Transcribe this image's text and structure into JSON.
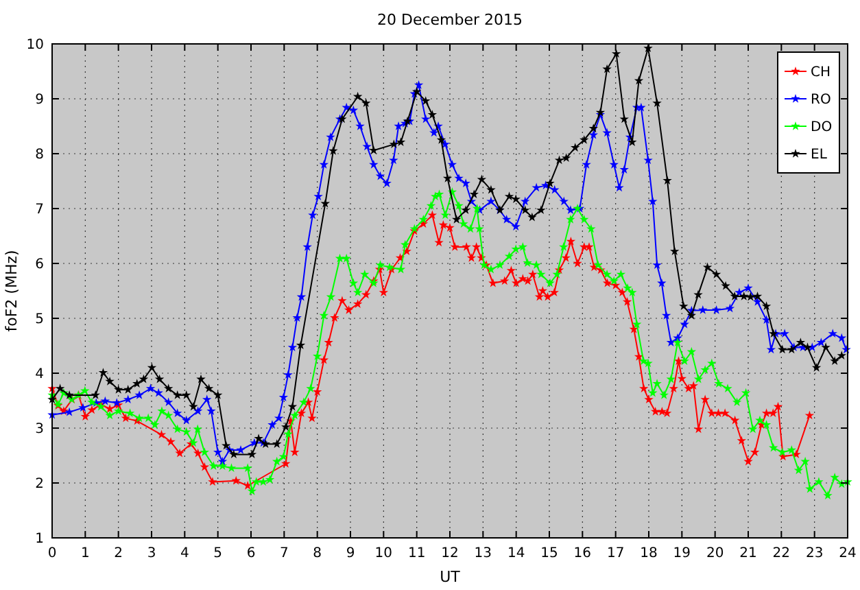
{
  "chart_data": {
    "type": "line",
    "title": "20 December 2015",
    "xlabel": "UT",
    "ylabel": "foF2 (MHz)",
    "xlim": [
      0,
      24
    ],
    "xticks": [
      0,
      1,
      2,
      3,
      4,
      5,
      6,
      7,
      8,
      9,
      10,
      11,
      12,
      13,
      14,
      15,
      16,
      17,
      18,
      19,
      20,
      21,
      22,
      23,
      24
    ],
    "ylim": [
      1,
      10
    ],
    "yticks": [
      1,
      2,
      3,
      4,
      5,
      6,
      7,
      8,
      9,
      10
    ],
    "grid": true,
    "legend": "top right",
    "marker": "star",
    "line_style": "solid",
    "series": [
      {
        "name": "CH",
        "color": "#ff0000",
        "x": [
          0,
          0.18,
          0.35,
          0.6,
          0.8,
          1.0,
          1.2,
          1.47,
          1.74,
          2.0,
          2.22,
          2.56,
          3.3,
          3.58,
          3.85,
          4.19,
          4.4,
          4.6,
          4.84,
          5.55,
          5.9,
          7.05,
          7.2,
          7.32,
          7.52,
          7.73,
          7.84,
          8.0,
          8.2,
          8.34,
          8.52,
          8.75,
          8.95,
          9.22,
          9.47,
          9.7,
          9.88,
          10.0,
          10.24,
          10.5,
          10.7,
          10.93,
          11.2,
          11.47,
          11.67,
          11.8,
          12.0,
          12.15,
          12.5,
          12.65,
          12.8,
          12.95,
          13.1,
          13.3,
          13.65,
          13.85,
          14.0,
          14.2,
          14.35,
          14.5,
          14.7,
          14.8,
          14.95,
          15.15,
          15.3,
          15.5,
          15.65,
          15.85,
          16.05,
          16.2,
          16.35,
          16.55,
          16.75,
          17.0,
          17.2,
          17.35,
          17.55,
          17.7,
          17.85,
          18.0,
          18.2,
          18.4,
          18.55,
          18.75,
          18.9,
          19.0,
          19.2,
          19.35,
          19.5,
          19.7,
          19.9,
          20.1,
          20.3,
          20.6,
          20.8,
          21.0,
          21.2,
          21.4,
          21.55,
          21.75,
          21.9,
          22.05,
          22.45,
          22.85
        ],
        "values": [
          3.72,
          3.41,
          3.31,
          3.52,
          3.6,
          3.21,
          3.33,
          3.43,
          3.35,
          3.42,
          3.18,
          3.13,
          2.88,
          2.75,
          2.54,
          2.71,
          2.54,
          2.29,
          2.02,
          2.04,
          1.95,
          2.35,
          3.13,
          2.56,
          3.27,
          3.47,
          3.18,
          3.66,
          4.24,
          4.56,
          5.01,
          5.32,
          5.15,
          5.26,
          5.43,
          5.68,
          5.89,
          5.47,
          5.89,
          6.1,
          6.22,
          6.59,
          6.72,
          6.88,
          6.38,
          6.7,
          6.65,
          6.3,
          6.3,
          6.1,
          6.3,
          6.1,
          5.97,
          5.64,
          5.68,
          5.87,
          5.64,
          5.72,
          5.68,
          5.8,
          5.39,
          5.5,
          5.39,
          5.47,
          5.88,
          6.1,
          6.4,
          6.0,
          6.3,
          6.3,
          5.93,
          5.88,
          5.64,
          5.6,
          5.47,
          5.3,
          4.8,
          4.3,
          3.72,
          3.52,
          3.3,
          3.3,
          3.27,
          3.72,
          4.22,
          3.9,
          3.72,
          3.77,
          2.98,
          3.52,
          3.27,
          3.27,
          3.27,
          3.14,
          2.77,
          2.39,
          2.56,
          3.06,
          3.27,
          3.27,
          3.39,
          2.48,
          2.52,
          3.23
        ]
      },
      {
        "name": "RO",
        "color": "#0000ff",
        "x": [
          0,
          0.52,
          0.93,
          1.33,
          1.6,
          1.95,
          2.29,
          2.63,
          2.97,
          3.21,
          3.51,
          3.78,
          4.05,
          4.4,
          4.67,
          4.8,
          5.0,
          5.14,
          5.35,
          5.69,
          6.1,
          6.37,
          6.64,
          6.84,
          6.98,
          7.12,
          7.25,
          7.39,
          7.52,
          7.7,
          7.86,
          8.03,
          8.2,
          8.4,
          8.68,
          8.88,
          9.09,
          9.29,
          9.5,
          9.7,
          9.9,
          10.1,
          10.3,
          10.45,
          10.65,
          10.79,
          10.93,
          11.06,
          11.27,
          11.52,
          11.65,
          11.86,
          12.07,
          12.27,
          12.48,
          12.65,
          12.9,
          13.24,
          13.5,
          13.71,
          13.99,
          14.27,
          14.61,
          14.89,
          15.16,
          15.44,
          15.64,
          15.92,
          16.12,
          16.33,
          16.54,
          16.74,
          16.95,
          17.11,
          17.26,
          17.43,
          17.64,
          17.77,
          17.98,
          18.12,
          18.25,
          18.39,
          18.53,
          18.67,
          18.87,
          19.08,
          19.29,
          19.63,
          20.04,
          20.45,
          20.73,
          21.0,
          21.28,
          21.55,
          21.69,
          21.83,
          22.1,
          22.38,
          22.65,
          22.93,
          23.2,
          23.55,
          23.82,
          23.96
        ],
        "values": [
          3.24,
          3.29,
          3.37,
          3.46,
          3.49,
          3.46,
          3.52,
          3.6,
          3.72,
          3.64,
          3.47,
          3.27,
          3.14,
          3.31,
          3.52,
          3.31,
          2.56,
          2.39,
          2.6,
          2.6,
          2.73,
          2.73,
          3.06,
          3.18,
          3.56,
          3.97,
          4.47,
          5.01,
          5.39,
          6.3,
          6.88,
          7.22,
          7.8,
          8.3,
          8.63,
          8.84,
          8.79,
          8.5,
          8.13,
          7.8,
          7.59,
          7.46,
          7.88,
          8.5,
          8.55,
          8.59,
          9.09,
          9.25,
          8.63,
          8.38,
          8.5,
          8.17,
          7.8,
          7.55,
          7.46,
          7.13,
          6.97,
          7.13,
          6.97,
          6.8,
          6.67,
          7.13,
          7.38,
          7.42,
          7.34,
          7.13,
          6.97,
          7.0,
          7.8,
          8.34,
          8.71,
          8.38,
          7.8,
          7.38,
          7.71,
          8.3,
          8.84,
          8.84,
          7.88,
          7.13,
          5.97,
          5.64,
          5.05,
          4.56,
          4.64,
          4.89,
          5.14,
          5.15,
          5.15,
          5.18,
          5.47,
          5.55,
          5.3,
          4.97,
          4.43,
          4.72,
          4.72,
          4.47,
          4.47,
          4.47,
          4.56,
          4.72,
          4.64,
          4.43
        ]
      },
      {
        "name": "DO",
        "color": "#00ff00",
        "x": [
          0,
          0.18,
          0.35,
          0.59,
          0.79,
          0.99,
          1.2,
          1.47,
          1.74,
          2.0,
          2.35,
          2.63,
          2.9,
          3.1,
          3.31,
          3.51,
          3.78,
          4.05,
          4.26,
          4.39,
          4.6,
          4.87,
          5.14,
          5.41,
          5.9,
          6.03,
          6.16,
          6.37,
          6.57,
          6.78,
          6.98,
          7.12,
          7.32,
          7.59,
          7.8,
          8.0,
          8.2,
          8.41,
          8.68,
          8.88,
          9.09,
          9.22,
          9.43,
          9.7,
          9.9,
          10.18,
          10.52,
          10.65,
          10.93,
          11.2,
          11.43,
          11.56,
          11.68,
          11.86,
          12.07,
          12.27,
          12.41,
          12.62,
          12.82,
          12.89,
          13.03,
          13.24,
          13.51,
          13.79,
          13.99,
          14.2,
          14.34,
          14.61,
          14.75,
          15.02,
          15.23,
          15.43,
          15.64,
          15.85,
          16.05,
          16.26,
          16.47,
          16.74,
          16.95,
          17.16,
          17.36,
          17.5,
          17.64,
          17.84,
          17.98,
          18.12,
          18.25,
          18.46,
          18.67,
          18.87,
          19.08,
          19.29,
          19.5,
          19.7,
          19.9,
          20.11,
          20.38,
          20.66,
          20.93,
          21.14,
          21.35,
          21.55,
          21.76,
          22.03,
          22.31,
          22.52,
          22.72,
          22.86,
          23.13,
          23.4,
          23.61,
          23.82,
          24.0
        ],
        "values": [
          3.6,
          3.43,
          3.64,
          3.52,
          3.6,
          3.68,
          3.47,
          3.39,
          3.23,
          3.31,
          3.27,
          3.18,
          3.18,
          3.06,
          3.31,
          3.23,
          2.98,
          2.93,
          2.73,
          2.98,
          2.56,
          2.31,
          2.31,
          2.27,
          2.27,
          1.85,
          2.02,
          2.02,
          2.06,
          2.39,
          2.48,
          2.89,
          3.23,
          3.47,
          3.72,
          4.31,
          5.05,
          5.39,
          6.09,
          6.09,
          5.64,
          5.47,
          5.8,
          5.64,
          5.97,
          5.93,
          5.89,
          6.34,
          6.63,
          6.8,
          7.05,
          7.22,
          7.26,
          6.88,
          7.3,
          7.05,
          6.72,
          6.63,
          7.0,
          6.63,
          5.97,
          5.89,
          5.97,
          6.13,
          6.26,
          6.3,
          6.01,
          5.97,
          5.8,
          5.64,
          5.8,
          6.3,
          6.8,
          7.0,
          6.8,
          6.63,
          5.97,
          5.8,
          5.68,
          5.8,
          5.55,
          5.47,
          4.89,
          4.22,
          4.18,
          3.64,
          3.81,
          3.6,
          3.89,
          4.56,
          4.22,
          4.39,
          3.89,
          4.06,
          4.18,
          3.81,
          3.72,
          3.47,
          3.64,
          2.98,
          3.14,
          3.06,
          2.64,
          2.56,
          2.6,
          2.23,
          2.39,
          1.89,
          2.02,
          1.77,
          2.1,
          1.98,
          2.02
        ]
      },
      {
        "name": "EL",
        "color": "#000000",
        "x": [
          0,
          0.24,
          0.52,
          1.31,
          1.54,
          1.74,
          2.0,
          2.29,
          2.56,
          2.76,
          3.01,
          3.24,
          3.51,
          3.78,
          4.05,
          4.26,
          4.49,
          4.73,
          5.0,
          5.25,
          5.48,
          6.03,
          6.23,
          6.44,
          6.78,
          7.05,
          7.25,
          7.5,
          8.24,
          8.48,
          8.75,
          9.22,
          9.47,
          9.7,
          10.31,
          10.52,
          10.72,
          11.0,
          11.27,
          11.47,
          11.74,
          11.93,
          12.2,
          12.48,
          12.73,
          12.96,
          13.24,
          13.51,
          13.79,
          13.99,
          14.27,
          14.48,
          14.75,
          15.02,
          15.3,
          15.51,
          15.78,
          16.05,
          16.33,
          16.54,
          16.74,
          17.02,
          17.26,
          17.5,
          17.7,
          17.98,
          18.25,
          18.56,
          18.78,
          19.05,
          19.29,
          19.49,
          19.77,
          20.04,
          20.32,
          20.59,
          20.87,
          21.07,
          21.28,
          21.55,
          21.76,
          22.03,
          22.31,
          22.58,
          22.79,
          23.06,
          23.34,
          23.61,
          23.82
        ],
        "values": [
          3.52,
          3.72,
          3.6,
          3.6,
          4.01,
          3.85,
          3.7,
          3.7,
          3.81,
          3.89,
          4.1,
          3.89,
          3.72,
          3.6,
          3.6,
          3.39,
          3.89,
          3.72,
          3.6,
          2.68,
          2.52,
          2.52,
          2.81,
          2.71,
          2.71,
          3.02,
          3.39,
          4.51,
          7.09,
          8.05,
          8.63,
          9.04,
          8.92,
          8.06,
          8.17,
          8.21,
          8.59,
          9.13,
          8.96,
          8.71,
          8.25,
          7.55,
          6.8,
          6.97,
          7.26,
          7.53,
          7.34,
          6.97,
          7.22,
          7.17,
          6.97,
          6.84,
          6.97,
          7.46,
          7.88,
          7.92,
          8.11,
          8.25,
          8.46,
          8.75,
          9.54,
          9.82,
          8.63,
          8.21,
          9.33,
          9.92,
          8.92,
          7.51,
          6.22,
          5.22,
          5.05,
          5.43,
          5.93,
          5.8,
          5.59,
          5.4,
          5.4,
          5.39,
          5.4,
          5.22,
          4.72,
          4.43,
          4.43,
          4.56,
          4.47,
          4.1,
          4.47,
          4.22,
          4.32
        ]
      }
    ]
  }
}
